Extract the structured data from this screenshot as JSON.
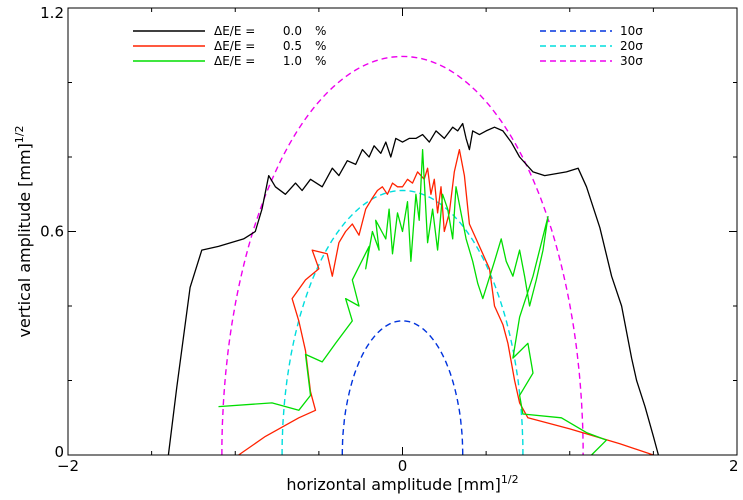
{
  "chart_data": {
    "type": "line",
    "title": "",
    "xlabel": "horizontal amplitude [mm]",
    "xlabel_power": "1/2",
    "ylabel": "vertical amplitude [mm]",
    "ylabel_power": "1/2",
    "xlim": [
      -2,
      2
    ],
    "ylim": [
      0,
      1.2
    ],
    "x_ticks": [
      {
        "value": -2,
        "label": "−2"
      },
      {
        "value": 0,
        "label": "0"
      },
      {
        "value": 2,
        "label": "2"
      }
    ],
    "y_ticks": [
      {
        "value": 0,
        "label": "0"
      },
      {
        "value": 0.6,
        "label": "0.6"
      },
      {
        "value": 1.2,
        "label": "1.2"
      }
    ],
    "grid": false,
    "legend_dp": {
      "placement": "top-left",
      "prefix": "ΔE/E =",
      "unit": "%",
      "entries": [
        {
          "value": "0.0",
          "color": "#000000"
        },
        {
          "value": "0.5",
          "color": "#ff2200"
        },
        {
          "value": "1.0",
          "color": "#00dd00"
        }
      ]
    },
    "legend_sigma": {
      "placement": "top-right",
      "entries": [
        {
          "label": "10σ",
          "color": "#0033dd"
        },
        {
          "label": "20σ",
          "color": "#00dddd"
        },
        {
          "label": "30σ",
          "color": "#ee00ee"
        }
      ]
    },
    "ellipses": [
      {
        "label": "10σ",
        "a": 0.36,
        "b": 0.36,
        "color": "#0033dd"
      },
      {
        "label": "20σ",
        "a": 0.72,
        "b": 0.71,
        "color": "#00dddd"
      },
      {
        "label": "30σ",
        "a": 1.08,
        "b": 1.07,
        "color": "#ee00ee"
      }
    ],
    "series": [
      {
        "legend_index": 0,
        "color": "#000000",
        "points": [
          [
            -1.4,
            0.0
          ],
          [
            -1.35,
            0.18
          ],
          [
            -1.27,
            0.45
          ],
          [
            -1.2,
            0.55
          ],
          [
            -1.1,
            0.56
          ],
          [
            -0.95,
            0.58
          ],
          [
            -0.88,
            0.6
          ],
          [
            -0.84,
            0.66
          ],
          [
            -0.8,
            0.75
          ],
          [
            -0.76,
            0.72
          ],
          [
            -0.7,
            0.7
          ],
          [
            -0.64,
            0.73
          ],
          [
            -0.6,
            0.71
          ],
          [
            -0.55,
            0.74
          ],
          [
            -0.48,
            0.72
          ],
          [
            -0.42,
            0.77
          ],
          [
            -0.38,
            0.75
          ],
          [
            -0.33,
            0.79
          ],
          [
            -0.28,
            0.78
          ],
          [
            -0.24,
            0.82
          ],
          [
            -0.2,
            0.8
          ],
          [
            -0.17,
            0.83
          ],
          [
            -0.13,
            0.81
          ],
          [
            -0.1,
            0.84
          ],
          [
            -0.07,
            0.8
          ],
          [
            -0.04,
            0.85
          ],
          [
            0.0,
            0.84
          ],
          [
            0.04,
            0.85
          ],
          [
            0.08,
            0.85
          ],
          [
            0.12,
            0.86
          ],
          [
            0.16,
            0.84
          ],
          [
            0.2,
            0.87
          ],
          [
            0.25,
            0.85
          ],
          [
            0.3,
            0.88
          ],
          [
            0.33,
            0.87
          ],
          [
            0.36,
            0.89
          ],
          [
            0.38,
            0.85
          ],
          [
            0.4,
            0.82
          ],
          [
            0.42,
            0.87
          ],
          [
            0.46,
            0.86
          ],
          [
            0.5,
            0.87
          ],
          [
            0.55,
            0.88
          ],
          [
            0.6,
            0.87
          ],
          [
            0.65,
            0.84
          ],
          [
            0.7,
            0.8
          ],
          [
            0.78,
            0.76
          ],
          [
            0.85,
            0.75
          ],
          [
            0.98,
            0.76
          ],
          [
            1.05,
            0.77
          ],
          [
            1.1,
            0.72
          ],
          [
            1.18,
            0.61
          ],
          [
            1.25,
            0.48
          ],
          [
            1.31,
            0.4
          ],
          [
            1.37,
            0.26
          ],
          [
            1.4,
            0.2
          ],
          [
            1.45,
            0.13
          ],
          [
            1.5,
            0.05
          ],
          [
            1.53,
            0.0
          ]
        ]
      },
      {
        "legend_index": 1,
        "color": "#ff2200",
        "points": [
          [
            -0.98,
            0.0
          ],
          [
            -0.82,
            0.05
          ],
          [
            -0.62,
            0.1
          ],
          [
            -0.52,
            0.12
          ],
          [
            -0.55,
            0.17
          ],
          [
            -0.58,
            0.28
          ],
          [
            -0.62,
            0.36
          ],
          [
            -0.66,
            0.42
          ],
          [
            -0.58,
            0.47
          ],
          [
            -0.5,
            0.5
          ],
          [
            -0.54,
            0.55
          ],
          [
            -0.45,
            0.54
          ],
          [
            -0.42,
            0.48
          ],
          [
            -0.38,
            0.57
          ],
          [
            -0.34,
            0.6
          ],
          [
            -0.3,
            0.62
          ],
          [
            -0.26,
            0.59
          ],
          [
            -0.22,
            0.66
          ],
          [
            -0.18,
            0.69
          ],
          [
            -0.15,
            0.71
          ],
          [
            -0.12,
            0.72
          ],
          [
            -0.09,
            0.7
          ],
          [
            -0.06,
            0.73
          ],
          [
            -0.03,
            0.72
          ],
          [
            0.0,
            0.72
          ],
          [
            0.03,
            0.74
          ],
          [
            0.06,
            0.73
          ],
          [
            0.09,
            0.76
          ],
          [
            0.11,
            0.75
          ],
          [
            0.13,
            0.74
          ],
          [
            0.15,
            0.77
          ],
          [
            0.17,
            0.7
          ],
          [
            0.19,
            0.74
          ],
          [
            0.21,
            0.65
          ],
          [
            0.23,
            0.72
          ],
          [
            0.25,
            0.6
          ],
          [
            0.28,
            0.65
          ],
          [
            0.31,
            0.76
          ],
          [
            0.34,
            0.82
          ],
          [
            0.37,
            0.75
          ],
          [
            0.4,
            0.62
          ],
          [
            0.44,
            0.58
          ],
          [
            0.48,
            0.54
          ],
          [
            0.52,
            0.5
          ],
          [
            0.55,
            0.4
          ],
          [
            0.6,
            0.35
          ],
          [
            0.63,
            0.3
          ],
          [
            0.67,
            0.2
          ],
          [
            0.7,
            0.14
          ],
          [
            0.75,
            0.1
          ],
          [
            1.0,
            0.07
          ],
          [
            1.3,
            0.03
          ],
          [
            1.5,
            0.0
          ]
        ]
      },
      {
        "legend_index": 2,
        "color": "#00dd00",
        "points": [
          [
            -1.1,
            0.13
          ],
          [
            -0.78,
            0.14
          ],
          [
            -0.62,
            0.12
          ],
          [
            -0.55,
            0.16
          ],
          [
            -0.58,
            0.27
          ],
          [
            -0.48,
            0.25
          ],
          [
            -0.4,
            0.3
          ],
          [
            -0.3,
            0.36
          ],
          [
            -0.34,
            0.42
          ],
          [
            -0.26,
            0.4
          ],
          [
            -0.3,
            0.47
          ],
          [
            -0.2,
            0.56
          ],
          [
            -0.22,
            0.5
          ],
          [
            -0.18,
            0.6
          ],
          [
            -0.14,
            0.55
          ],
          [
            -0.16,
            0.63
          ],
          [
            -0.1,
            0.58
          ],
          [
            -0.08,
            0.66
          ],
          [
            -0.06,
            0.54
          ],
          [
            -0.03,
            0.65
          ],
          [
            0.0,
            0.6
          ],
          [
            0.03,
            0.68
          ],
          [
            0.05,
            0.52
          ],
          [
            0.08,
            0.7
          ],
          [
            0.1,
            0.63
          ],
          [
            0.12,
            0.82
          ],
          [
            0.15,
            0.57
          ],
          [
            0.18,
            0.66
          ],
          [
            0.21,
            0.55
          ],
          [
            0.24,
            0.7
          ],
          [
            0.27,
            0.66
          ],
          [
            0.3,
            0.58
          ],
          [
            0.32,
            0.72
          ],
          [
            0.35,
            0.65
          ],
          [
            0.38,
            0.58
          ],
          [
            0.42,
            0.52
          ],
          [
            0.45,
            0.46
          ],
          [
            0.48,
            0.42
          ],
          [
            0.55,
            0.52
          ],
          [
            0.59,
            0.58
          ],
          [
            0.62,
            0.52
          ],
          [
            0.66,
            0.48
          ],
          [
            0.7,
            0.55
          ],
          [
            0.73,
            0.48
          ],
          [
            0.76,
            0.4
          ],
          [
            0.8,
            0.47
          ],
          [
            0.84,
            0.55
          ],
          [
            0.87,
            0.64
          ],
          [
            0.78,
            0.48
          ],
          [
            0.7,
            0.37
          ],
          [
            0.66,
            0.26
          ],
          [
            0.75,
            0.3
          ],
          [
            0.78,
            0.22
          ],
          [
            0.7,
            0.16
          ],
          [
            0.72,
            0.11
          ],
          [
            0.95,
            0.1
          ],
          [
            1.1,
            0.06
          ],
          [
            1.22,
            0.04
          ],
          [
            1.13,
            0.0
          ]
        ]
      }
    ]
  }
}
